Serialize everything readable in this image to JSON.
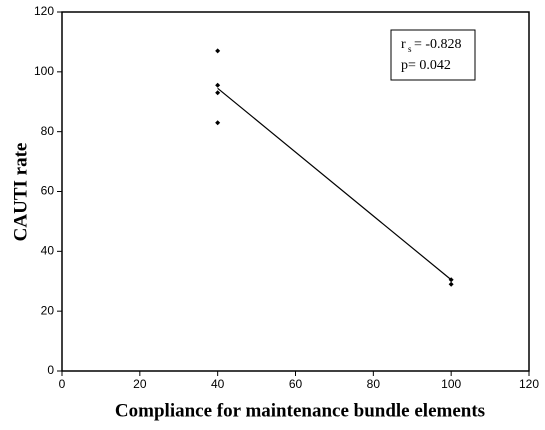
{
  "chart_data": {
    "type": "scatter",
    "x_label": "Compliance for maintenance bundle elements",
    "y_label": "CAUTI rate",
    "x": [
      40,
      40,
      40,
      40,
      100,
      100
    ],
    "y": [
      107,
      95.5,
      93,
      83,
      30.5,
      29
    ],
    "color": "#000000",
    "trendline": {
      "x": [
        40,
        100
      ],
      "y": [
        94.5,
        30.5
      ],
      "color": "#000000"
    },
    "annotation": {
      "r": "r",
      "r_sub": "s",
      "r_text": "= -0.828",
      "p_text": "p=  0.042"
    },
    "xlim": [
      0,
      120
    ],
    "xticks": [
      0,
      20,
      40,
      60,
      80,
      100,
      120
    ],
    "ylim": [
      0,
      120
    ],
    "yticks": [
      0,
      20,
      40,
      60,
      80,
      100,
      120
    ],
    "grid": false
  }
}
